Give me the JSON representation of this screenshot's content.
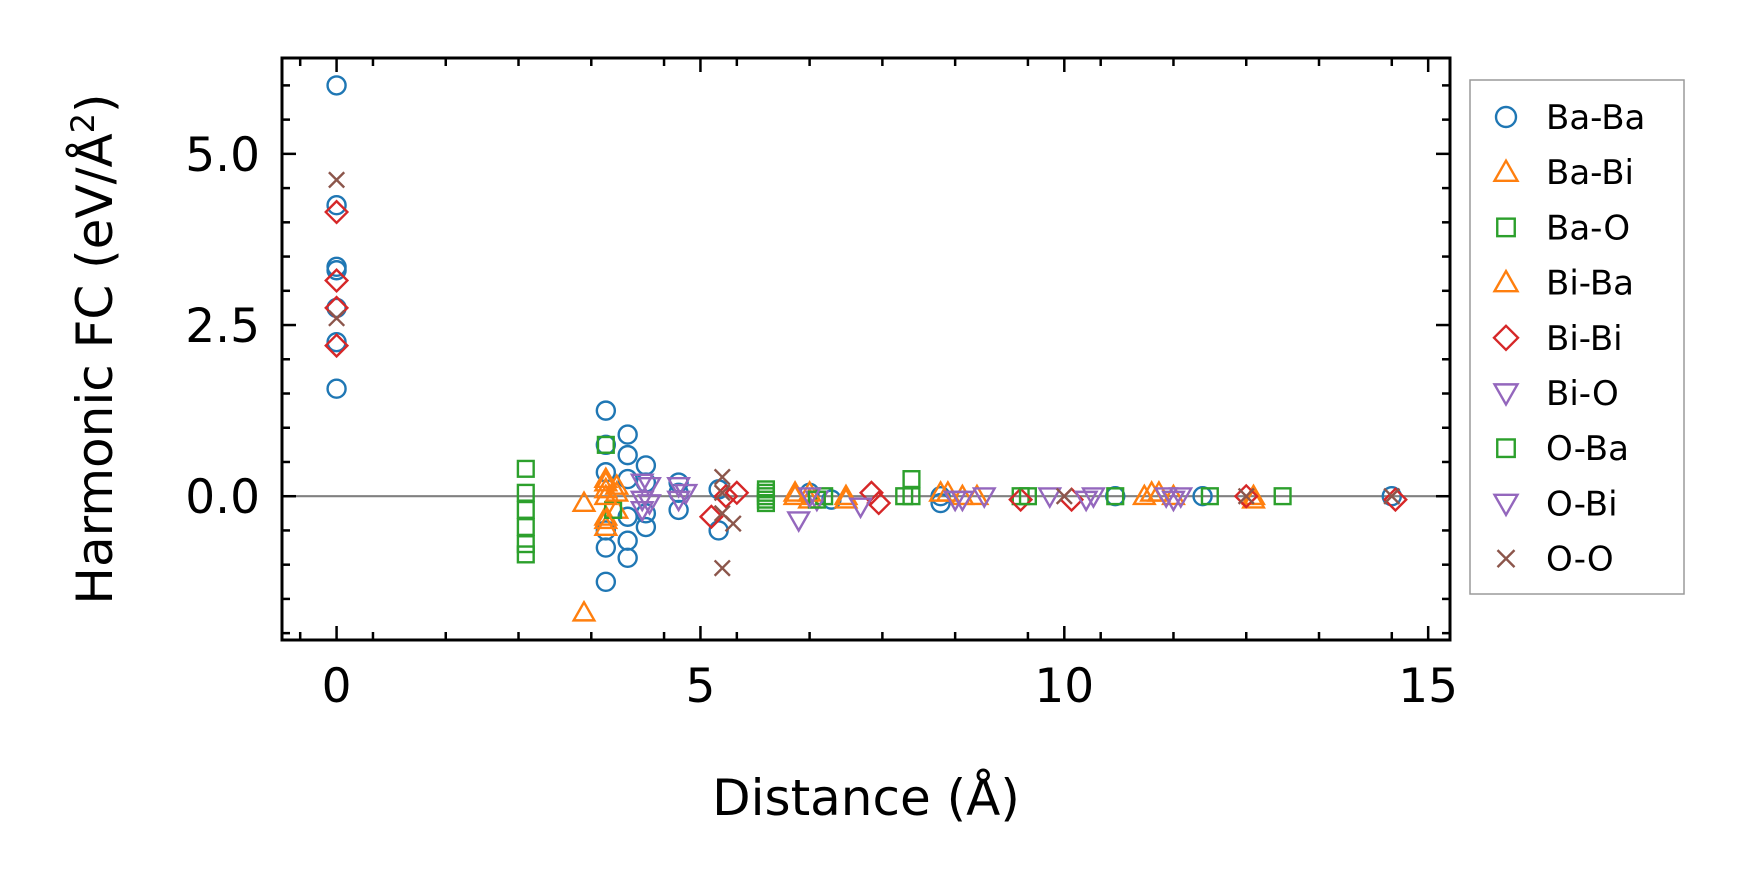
{
  "chart_data": {
    "type": "scatter",
    "xlabel": "Distance (Å)",
    "ylabel_main": "Harmonic FC (eV/Å",
    "ylabel_sup": "2",
    "ylabel_close": ")",
    "xlim": [
      -0.75,
      15.3
    ],
    "ylim": [
      -2.1,
      6.4
    ],
    "xticks": [
      0,
      5,
      10,
      15
    ],
    "xtick_labels": [
      "0",
      "5",
      "10",
      "15"
    ],
    "yticks": [
      0.0,
      2.5,
      5.0
    ],
    "ytick_labels": [
      "0.0",
      "2.5",
      "5.0"
    ],
    "zero_line": 0,
    "legend_position": "outside-right",
    "series": [
      {
        "name": "Ba-Ba",
        "marker": "circle",
        "color": "#1f77b4",
        "points": [
          [
            0,
            6.0
          ],
          [
            0,
            4.25
          ],
          [
            0,
            3.35
          ],
          [
            0,
            3.3
          ],
          [
            0,
            2.75
          ],
          [
            0,
            2.25
          ],
          [
            0,
            1.57
          ],
          [
            3.7,
            1.25
          ],
          [
            3.7,
            0.75
          ],
          [
            3.7,
            0.35
          ],
          [
            3.7,
            -0.5
          ],
          [
            3.7,
            -0.75
          ],
          [
            3.7,
            -1.25
          ],
          [
            4.0,
            0.9
          ],
          [
            4.0,
            0.6
          ],
          [
            4.0,
            0.25
          ],
          [
            4.0,
            -0.3
          ],
          [
            4.0,
            -0.65
          ],
          [
            4.0,
            -0.9
          ],
          [
            4.25,
            0.45
          ],
          [
            4.25,
            0.2
          ],
          [
            4.25,
            -0.25
          ],
          [
            4.25,
            -0.45
          ],
          [
            4.7,
            0.2
          ],
          [
            4.7,
            0.05
          ],
          [
            4.7,
            -0.2
          ],
          [
            5.25,
            0.1
          ],
          [
            5.25,
            -0.5
          ],
          [
            6.5,
            0.05
          ],
          [
            6.8,
            -0.05
          ],
          [
            8.3,
            0.0
          ],
          [
            8.3,
            -0.1
          ],
          [
            10.7,
            0.0
          ],
          [
            11.9,
            0.0
          ],
          [
            14.5,
            0.0
          ]
        ]
      },
      {
        "name": "Ba-Bi",
        "marker": "triangle-up",
        "color": "#ff7f0e",
        "points": [
          [
            3.4,
            -0.1
          ],
          [
            3.4,
            -1.7
          ],
          [
            3.7,
            0.25
          ],
          [
            3.7,
            0.1
          ],
          [
            3.7,
            -0.3
          ],
          [
            3.7,
            -0.45
          ],
          [
            3.85,
            0.15
          ],
          [
            3.85,
            -0.2
          ],
          [
            6.3,
            0.05
          ],
          [
            6.5,
            -0.05
          ],
          [
            7.0,
            0.0
          ],
          [
            8.4,
            0.05
          ],
          [
            8.8,
            0.0
          ],
          [
            11.2,
            0.05
          ],
          [
            11.5,
            0.0
          ],
          [
            12.6,
            0.0
          ]
        ]
      },
      {
        "name": "Ba-O",
        "marker": "square",
        "color": "#2ca02c",
        "points": [
          [
            2.6,
            0.4
          ],
          [
            2.6,
            0.05
          ],
          [
            2.6,
            -0.2
          ],
          [
            2.6,
            -0.45
          ],
          [
            2.6,
            -0.7
          ],
          [
            2.6,
            -0.85
          ],
          [
            3.7,
            0.75
          ],
          [
            3.8,
            -0.2
          ],
          [
            5.9,
            0.1
          ],
          [
            5.9,
            0.0
          ],
          [
            5.9,
            -0.1
          ],
          [
            6.7,
            0.0
          ],
          [
            7.9,
            0.25
          ],
          [
            7.9,
            0.0
          ],
          [
            9.4,
            0.0
          ],
          [
            10.7,
            0.0
          ],
          [
            12.0,
            0.0
          ],
          [
            13.0,
            0.0
          ]
        ]
      },
      {
        "name": "Bi-Ba",
        "marker": "triangle-up",
        "color": "#ff7f0e",
        "points": [
          [
            3.7,
            0.2
          ],
          [
            3.7,
            0.0
          ],
          [
            3.7,
            -0.35
          ],
          [
            3.85,
            0.05
          ],
          [
            6.3,
            0.0
          ],
          [
            6.5,
            0.05
          ],
          [
            7.0,
            -0.05
          ],
          [
            8.3,
            0.05
          ],
          [
            8.6,
            0.0
          ],
          [
            11.1,
            0.0
          ],
          [
            11.3,
            0.05
          ],
          [
            12.6,
            -0.05
          ]
        ]
      },
      {
        "name": "Bi-Bi",
        "marker": "diamond",
        "color": "#d62728",
        "points": [
          [
            0,
            4.15
          ],
          [
            0,
            3.15
          ],
          [
            0,
            2.75
          ],
          [
            0,
            2.2
          ],
          [
            5.15,
            -0.3
          ],
          [
            5.35,
            0.0
          ],
          [
            5.5,
            0.05
          ],
          [
            7.35,
            0.05
          ],
          [
            7.45,
            -0.1
          ],
          [
            9.4,
            -0.05
          ],
          [
            10.1,
            -0.05
          ],
          [
            12.5,
            0.0
          ],
          [
            14.55,
            -0.05
          ]
        ]
      },
      {
        "name": "Bi-O",
        "marker": "triangle-down",
        "color": "#9467bd",
        "points": [
          [
            4.2,
            0.2
          ],
          [
            4.2,
            -0.05
          ],
          [
            4.2,
            -0.2
          ],
          [
            4.7,
            0.15
          ],
          [
            4.7,
            -0.05
          ],
          [
            6.35,
            -0.35
          ],
          [
            6.6,
            -0.05
          ],
          [
            7.2,
            -0.15
          ],
          [
            8.5,
            -0.05
          ],
          [
            8.9,
            0.0
          ],
          [
            9.8,
            0.0
          ],
          [
            10.3,
            -0.05
          ],
          [
            11.4,
            0.0
          ],
          [
            11.6,
            0.0
          ]
        ]
      },
      {
        "name": "O-Ba",
        "marker": "square",
        "color": "#2ca02c",
        "points": [
          [
            5.9,
            0.05
          ],
          [
            5.9,
            -0.05
          ],
          [
            6.6,
            -0.05
          ],
          [
            7.8,
            0.0
          ],
          [
            9.5,
            0.0
          ]
        ]
      },
      {
        "name": "O-Bi",
        "marker": "triangle-down",
        "color": "#9467bd",
        "points": [
          [
            4.3,
            0.15
          ],
          [
            4.3,
            -0.1
          ],
          [
            4.8,
            0.05
          ],
          [
            6.5,
            0.0
          ],
          [
            8.6,
            -0.05
          ],
          [
            10.4,
            0.0
          ],
          [
            11.5,
            -0.05
          ]
        ]
      },
      {
        "name": "O-O",
        "marker": "x",
        "color": "#8c564b",
        "points": [
          [
            0,
            4.62
          ],
          [
            0,
            2.6
          ],
          [
            5.3,
            0.28
          ],
          [
            5.3,
            0.05
          ],
          [
            5.3,
            -0.25
          ],
          [
            5.3,
            -1.05
          ],
          [
            5.45,
            -0.4
          ],
          [
            10.0,
            0.0
          ],
          [
            12.5,
            0.0
          ],
          [
            14.5,
            0.0
          ]
        ]
      }
    ]
  }
}
